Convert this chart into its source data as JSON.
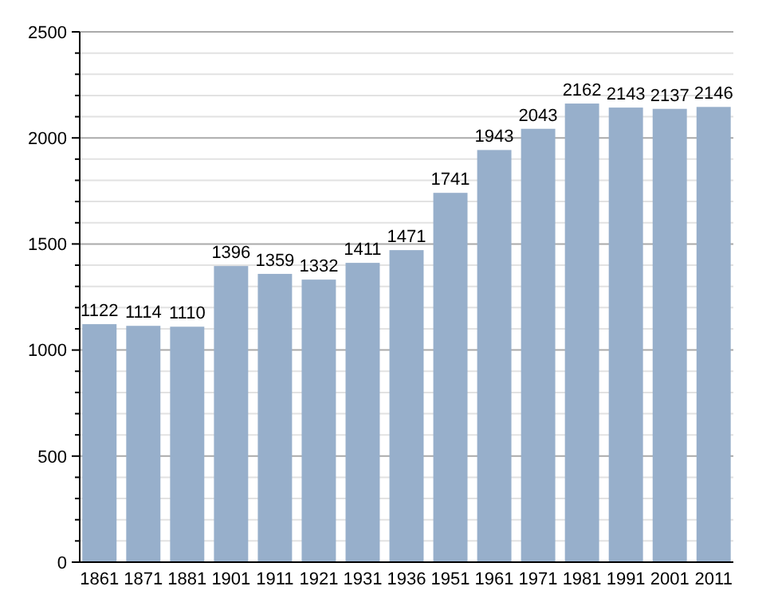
{
  "chart_data": {
    "type": "bar",
    "categories": [
      "1861",
      "1871",
      "1881",
      "1901",
      "1911",
      "1921",
      "1931",
      "1936",
      "1951",
      "1961",
      "1971",
      "1981",
      "1991",
      "2001",
      "2011"
    ],
    "values": [
      1122,
      1114,
      1110,
      1396,
      1359,
      1332,
      1411,
      1471,
      1741,
      1943,
      2043,
      2162,
      2143,
      2137,
      2146
    ],
    "color": "#97afcb",
    "data_labels": true,
    "grid": "y",
    "ylim": [
      0,
      2500
    ],
    "yticks": [
      0,
      {
        "value": 100,
        "label": null
      },
      {
        "value": 200,
        "label": null
      },
      {
        "value": 300,
        "label": null
      },
      {
        "value": 400,
        "label": null
      },
      500,
      {
        "value": 600,
        "label": null
      },
      {
        "value": 700,
        "label": null
      },
      {
        "value": 800,
        "label": null
      },
      {
        "value": 900,
        "label": null
      },
      1000,
      {
        "value": 1100,
        "label": null
      },
      {
        "value": 1200,
        "label": null
      },
      {
        "value": 1300,
        "label": null
      },
      {
        "value": 1400,
        "label": null
      },
      1500,
      {
        "value": 1600,
        "label": null
      },
      {
        "value": 1700,
        "label": null
      },
      {
        "value": 1800,
        "label": null
      },
      {
        "value": 1900,
        "label": null
      },
      2000,
      {
        "value": 2100,
        "label": null
      },
      {
        "value": 2200,
        "label": null
      },
      {
        "value": 2300,
        "label": null
      },
      {
        "value": 2400,
        "label": null
      },
      2500
    ]
  }
}
